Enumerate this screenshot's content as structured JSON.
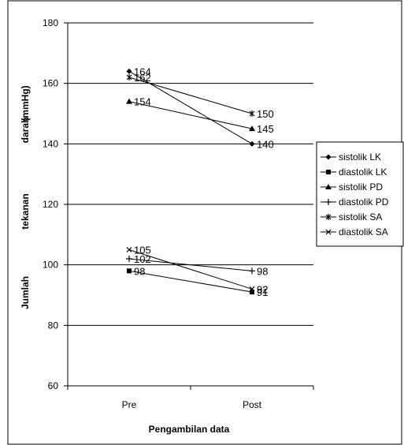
{
  "chart_data": {
    "type": "line",
    "categories": [
      "Pre",
      "Post"
    ],
    "ylim": [
      60,
      180
    ],
    "yticks": [
      60,
      80,
      100,
      120,
      140,
      160,
      180
    ],
    "grid": true,
    "xlabel": "Pengambilan data",
    "ylabel_parts": [
      "Jumlah",
      "tekanan",
      "darah",
      "(mmHg)"
    ],
    "legend_position": "right",
    "series": [
      {
        "name": "sistolik LK",
        "marker": "diamond",
        "values": [
          164,
          140
        ]
      },
      {
        "name": "diastolik LK",
        "marker": "square",
        "values": [
          98,
          91
        ]
      },
      {
        "name": "sistolik PD",
        "marker": "triangle",
        "values": [
          154,
          145
        ]
      },
      {
        "name": "diastolik PD",
        "marker": "plus",
        "values": [
          102,
          98
        ]
      },
      {
        "name": "sistolik SA",
        "marker": "star",
        "values": [
          162,
          150
        ]
      },
      {
        "name": "diastolik SA",
        "marker": "x",
        "values": [
          105,
          92
        ]
      }
    ]
  }
}
